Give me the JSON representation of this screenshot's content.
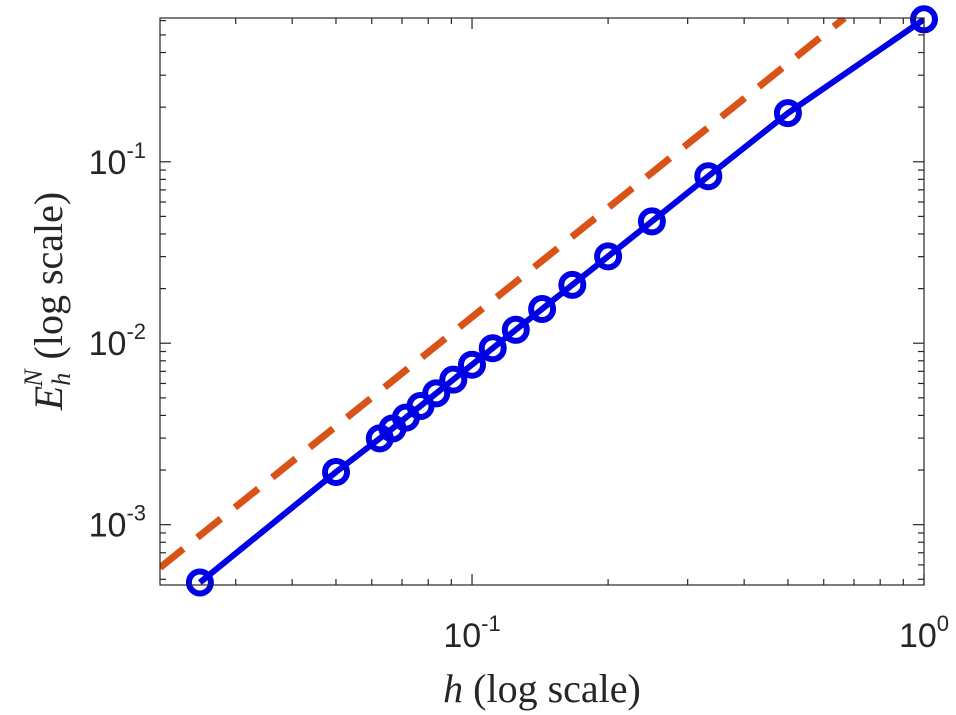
{
  "chart_data": {
    "type": "line",
    "title": "",
    "xlabel": {
      "var": "h",
      "suffix": " (log scale)"
    },
    "ylabel": {
      "var": "E",
      "sub": "h",
      "sup": "N",
      "suffix": " (log scale)"
    },
    "x_scale": "log",
    "y_scale": "log",
    "xlim": [
      0.0204,
      1.0
    ],
    "ylim": [
      0.000465,
      0.62
    ],
    "x_ticks": [
      {
        "value": 0.1,
        "base": "10",
        "exp": "-1"
      },
      {
        "value": 1.0,
        "base": "10",
        "exp": "0"
      }
    ],
    "y_ticks": [
      {
        "value": 0.001,
        "base": "10",
        "exp": "-3"
      },
      {
        "value": 0.01,
        "base": "10",
        "exp": "-2"
      },
      {
        "value": 0.1,
        "base": "10",
        "exp": "-1"
      }
    ],
    "grid": false,
    "series": [
      {
        "style": "solid",
        "marker": "circle",
        "color": "#0000E6",
        "x": [
          0.025,
          0.05,
          0.0625,
          0.0667,
          0.0714,
          0.0769,
          0.0833,
          0.0909,
          0.1,
          0.1111,
          0.125,
          0.1429,
          0.1667,
          0.2,
          0.25,
          0.3333,
          0.5,
          1.0
        ],
        "y": [
          0.00048,
          0.00195,
          0.00299,
          0.00339,
          0.00389,
          0.00451,
          0.00529,
          0.0063,
          0.00761,
          0.00939,
          0.01185,
          0.01543,
          0.02097,
          0.03009,
          0.04691,
          0.08326,
          0.18544,
          0.61
        ]
      },
      {
        "style": "dashed",
        "marker": "none",
        "color": "#D95319",
        "x": [
          0.0204,
          0.667
        ],
        "y": [
          0.00058,
          0.62
        ]
      }
    ]
  }
}
